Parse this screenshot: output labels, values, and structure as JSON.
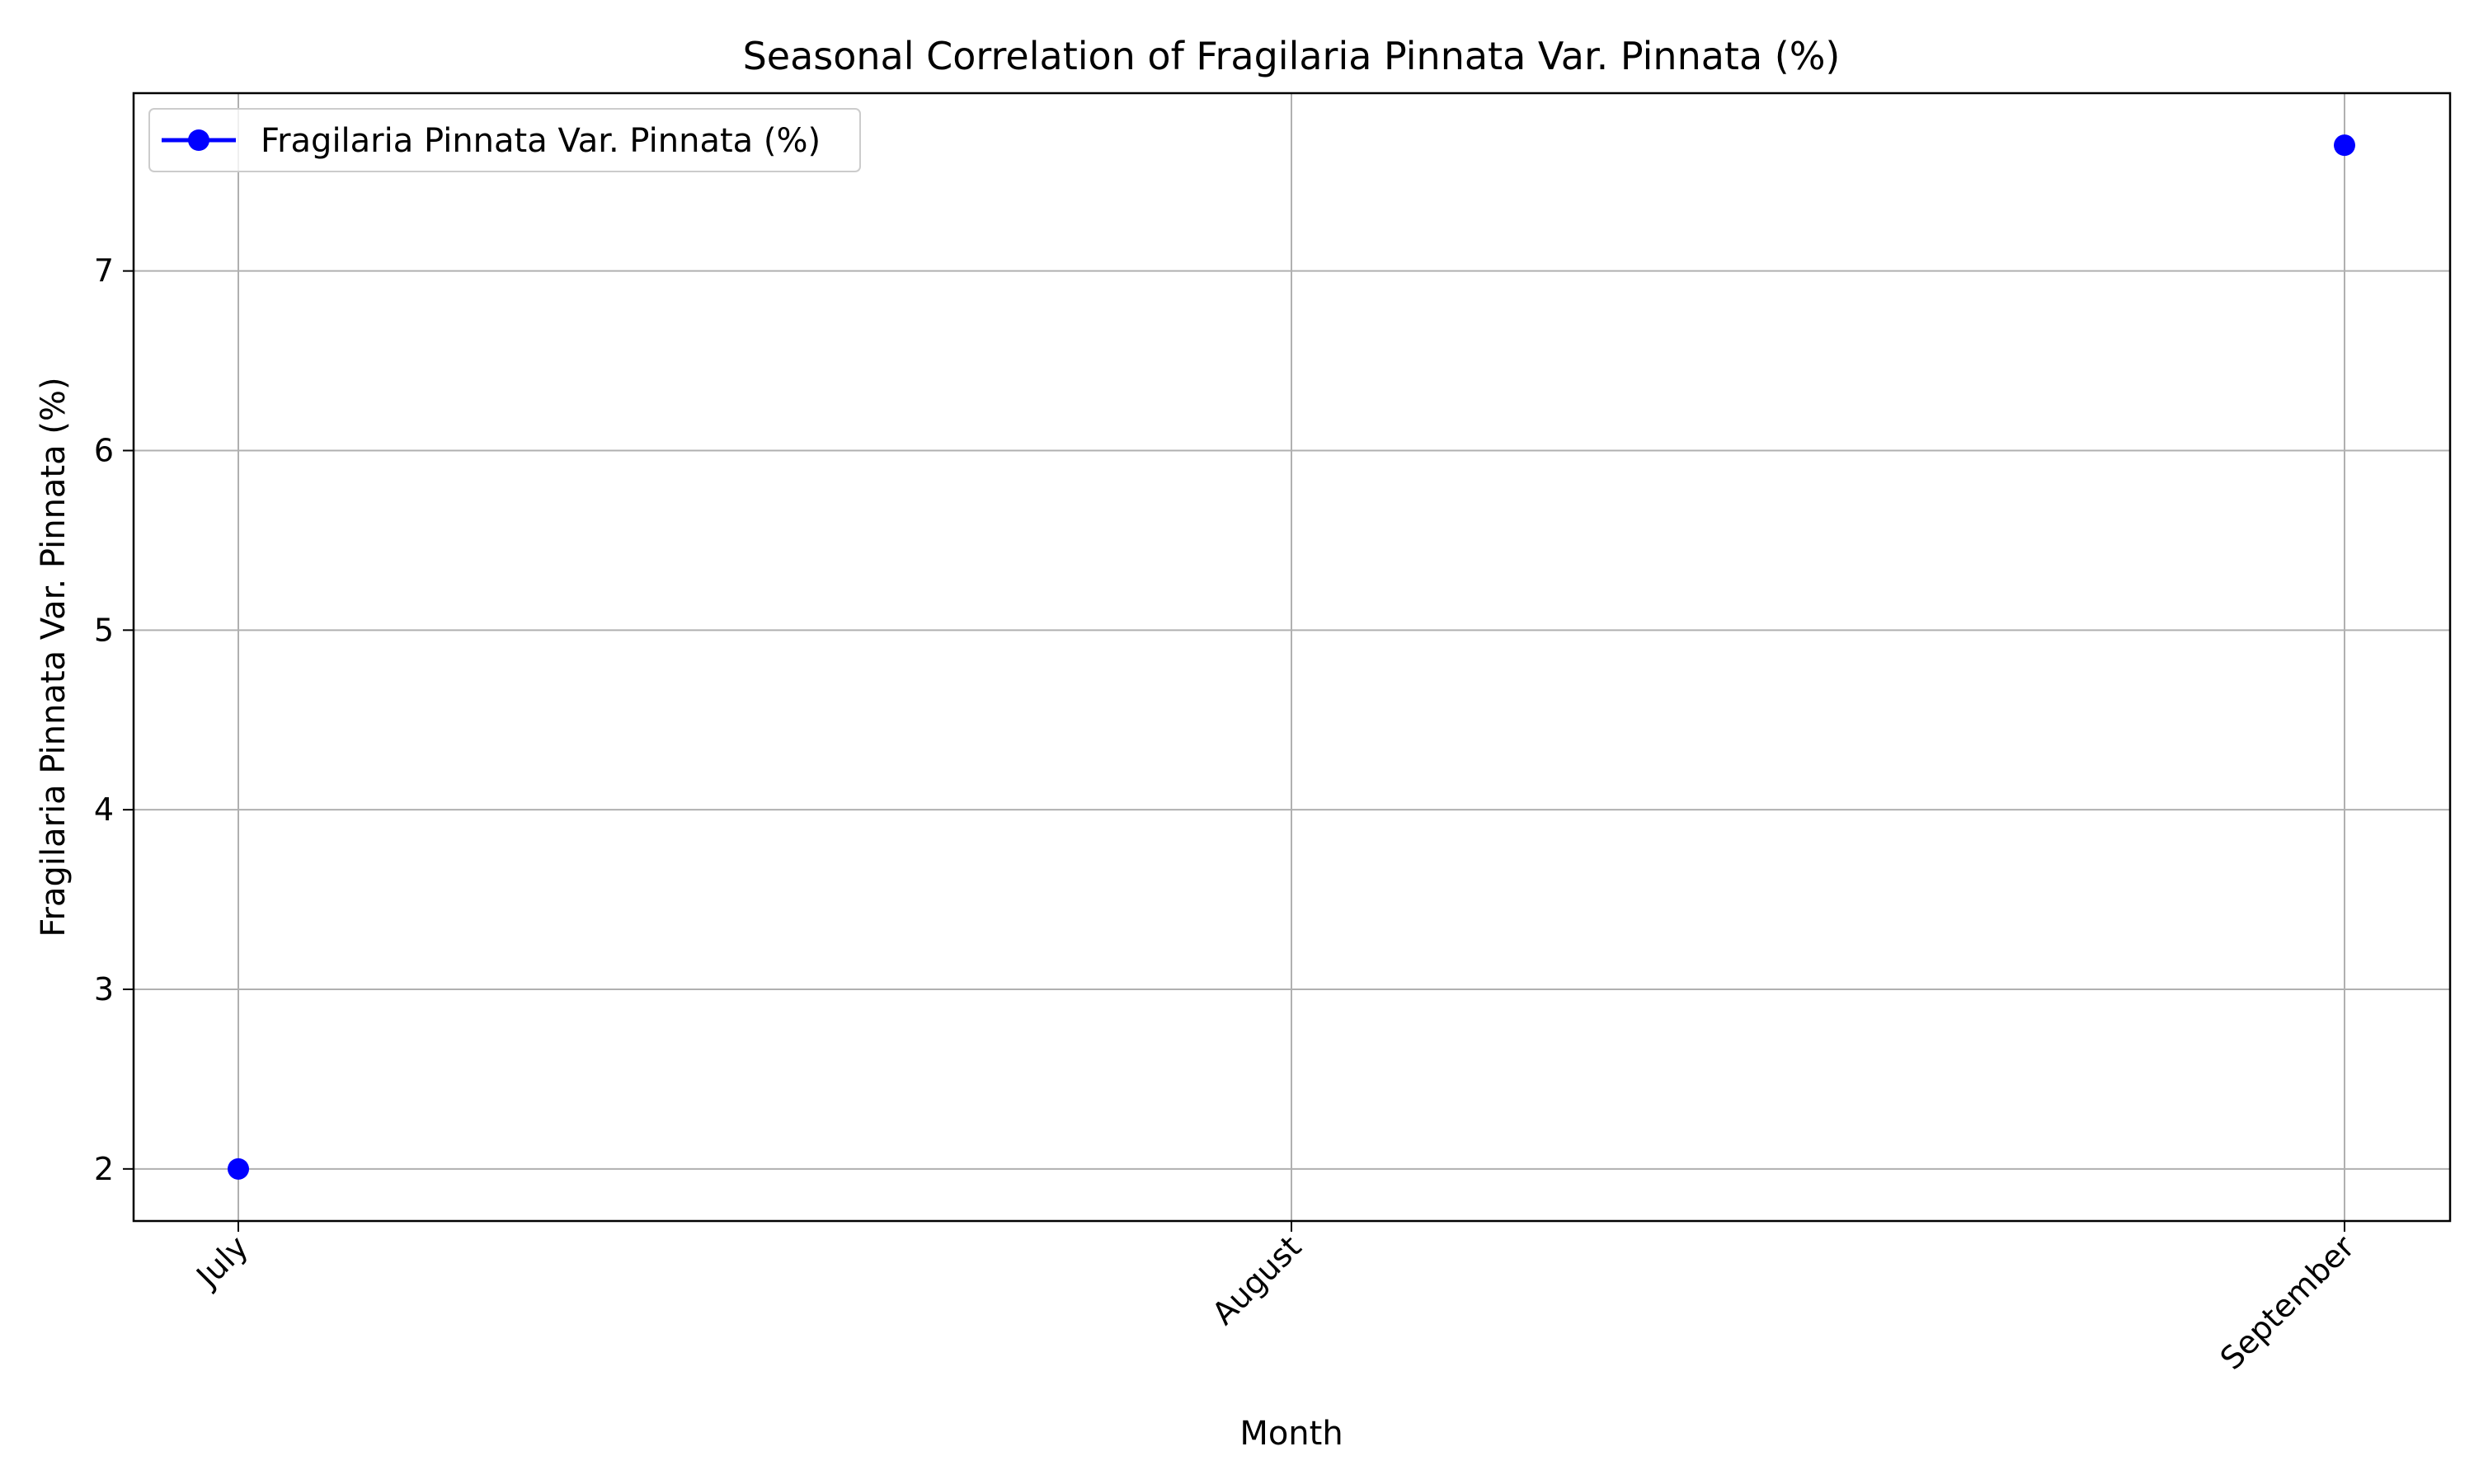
{
  "chart_data": {
    "type": "line",
    "title": "Seasonal Correlation of Fragilaria Pinnata Var. Pinnata (%)",
    "xlabel": "Month",
    "ylabel": "Fragilaria Pinnata Var. Pinnata (%)",
    "categories": [
      "July",
      "August",
      "September"
    ],
    "series": [
      {
        "name": "Fragilaria Pinnata Var. Pinnata (%)",
        "values": [
          2.0,
          null,
          7.7
        ],
        "color": "#0000ff",
        "marker": "circle"
      }
    ],
    "ylim": [
      1.71,
      7.99
    ],
    "yticks": [
      2,
      3,
      4,
      5,
      6,
      7
    ],
    "grid": true,
    "legend_position": "upper-left"
  }
}
